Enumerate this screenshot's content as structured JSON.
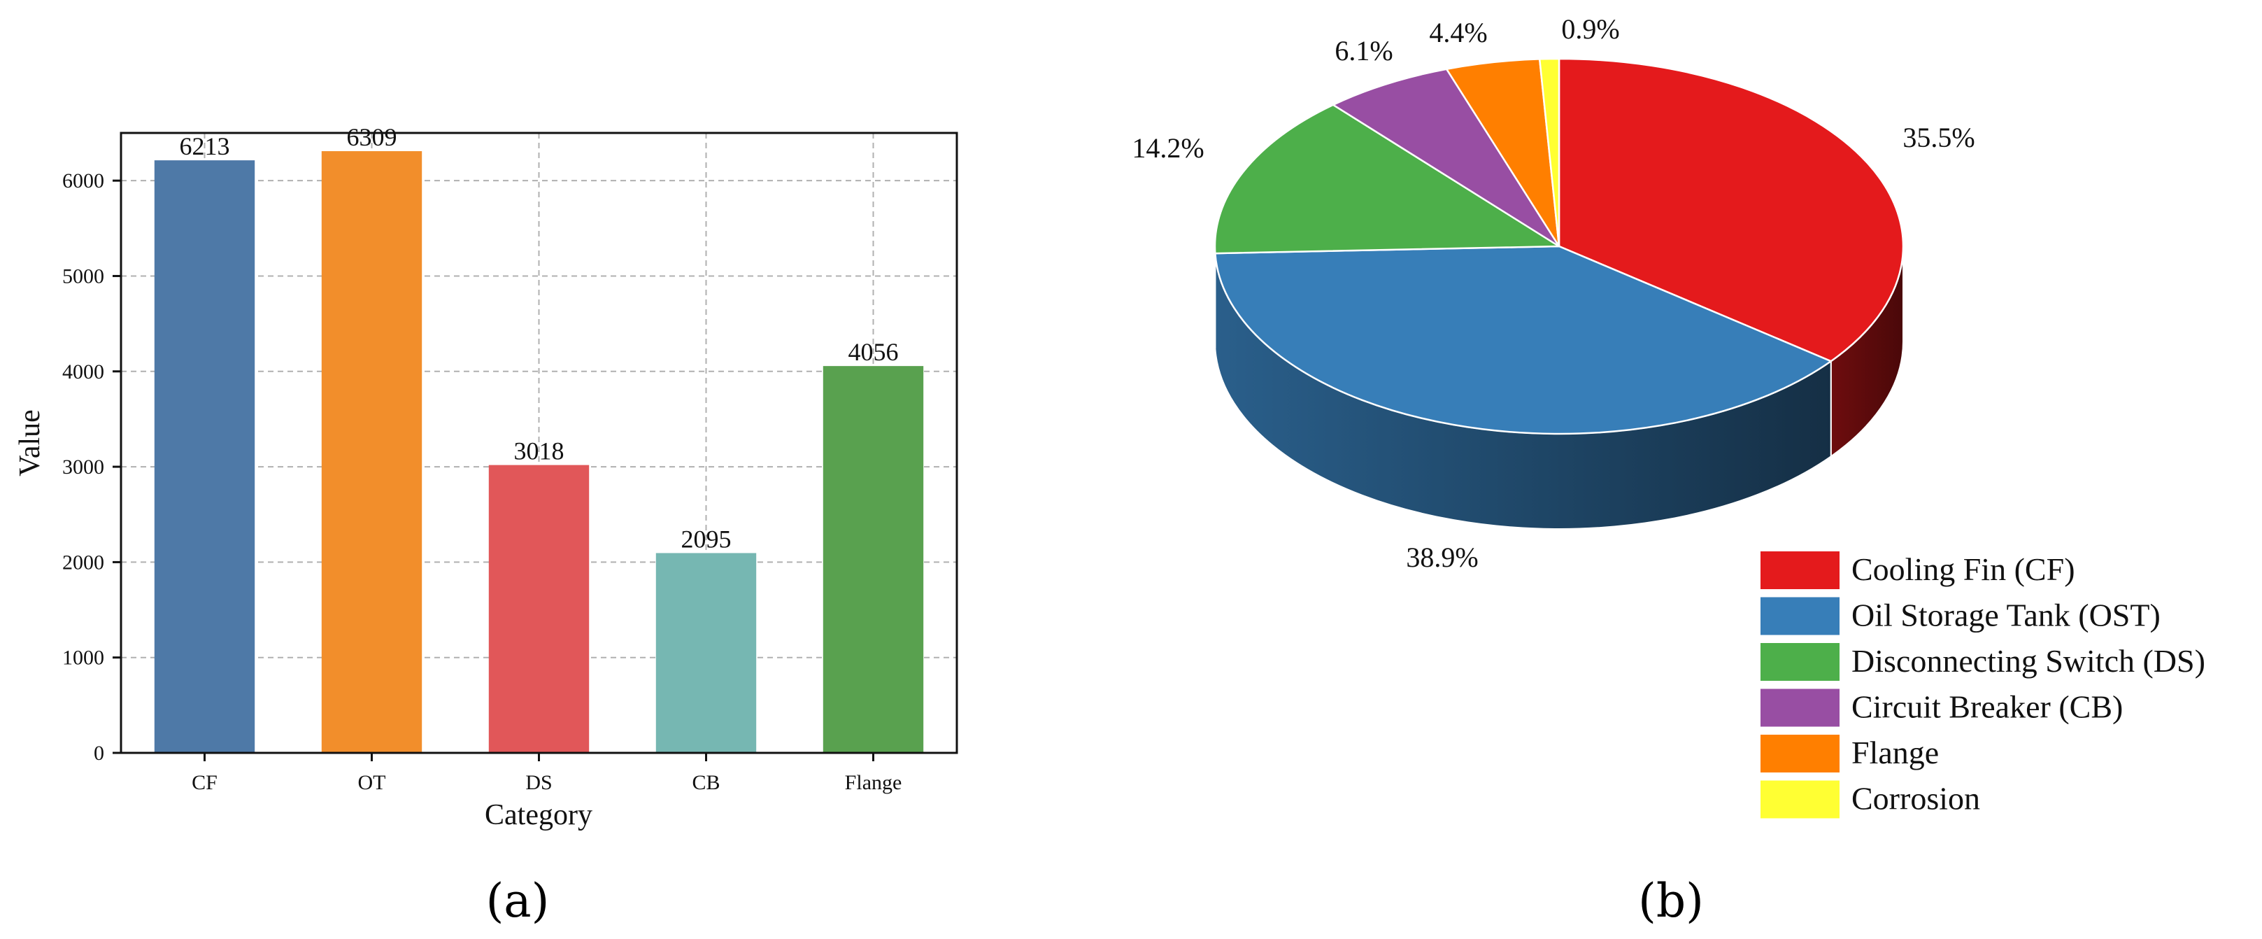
{
  "chart_data": [
    {
      "type": "bar",
      "categories": [
        "CF",
        "OT",
        "DS",
        "CB",
        "Flange"
      ],
      "values": [
        6213,
        6309,
        3018,
        2095,
        4056
      ],
      "data_labels": [
        "6213",
        "6309",
        "3018",
        "2095",
        "4056"
      ],
      "colors": [
        "#4e79a7",
        "#f28e2b",
        "#e15759",
        "#76b7b2",
        "#59a14f"
      ],
      "xlabel": "Category",
      "ylabel": "Value",
      "ylim": [
        0,
        6500
      ],
      "yticks": [
        0,
        1000,
        2000,
        3000,
        4000,
        5000,
        6000
      ],
      "ytick_labels": [
        "0",
        "1000",
        "2000",
        "3000",
        "4000",
        "5000",
        "6000"
      ],
      "grid": true,
      "caption": "(a)"
    },
    {
      "type": "pie",
      "style": "3d",
      "labels": [
        "Cooling Fin (CF)",
        "Oil Storage Tank (OST)",
        "Disconnecting Switch (DS)",
        "Circuit Breaker (CB)",
        "Flange",
        "Corrosion"
      ],
      "values": [
        35.5,
        38.9,
        14.2,
        6.1,
        4.4,
        0.9
      ],
      "value_labels": [
        "35.5%",
        "38.9%",
        "14.2%",
        "6.1%",
        "4.4%",
        "0.9%"
      ],
      "colors": [
        "#e41a1c",
        "#377eb8",
        "#4daf4a",
        "#984ea3",
        "#ff7f00",
        "#ffff33"
      ],
      "legend_placement": "bottom-right",
      "caption": "(b)"
    }
  ]
}
